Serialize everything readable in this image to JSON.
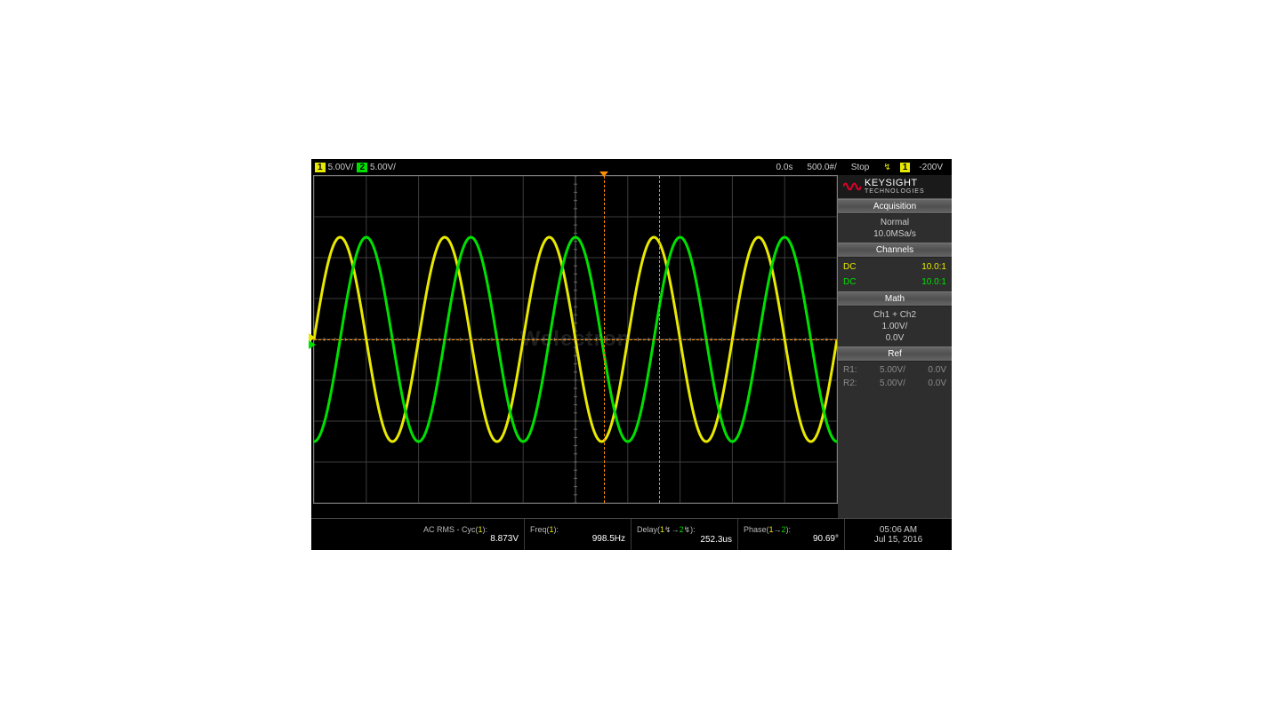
{
  "topbar": {
    "ch1_num": "1",
    "ch1_scale": "5.00V/",
    "ch2_num": "2",
    "ch2_scale": "5.00V/",
    "delay": "0.0s",
    "timebase": "500.0#/",
    "run_state": "Stop",
    "trig_edge_glyph": "↯",
    "trig_source": "1",
    "trig_level": "-200V"
  },
  "waveform": {
    "type": "line",
    "grid_cols": 10,
    "grid_rows": 8,
    "grid_color": "#3c3c3c",
    "center_line_color": "#6a6a6a",
    "background_color": "#000000",
    "cursor_color": "#ff8c00",
    "ground_row": 4,
    "trigger_cursor_col": 5.55,
    "cursor2_col": 6.6,
    "series": [
      {
        "name": "ch1",
        "color": "#e8e800",
        "line_width": 3,
        "amplitude_divs": 2.5,
        "cycles_on_screen": 5.0,
        "phase_deg": 0
      },
      {
        "name": "ch2",
        "color": "#00e000",
        "line_width": 3,
        "amplitude_divs": 2.5,
        "cycles_on_screen": 5.0,
        "phase_deg": -90
      }
    ],
    "watermark": "Welectron"
  },
  "brand": {
    "name": "KEYSIGHT",
    "sub": "TECHNOLOGIES",
    "logo_color": "#e0002a"
  },
  "side": {
    "acquisition_hdr": "Acquisition",
    "acq_mode": "Normal",
    "acq_rate": "10.0MSa/s",
    "channels_hdr": "Channels",
    "chan_rows": [
      {
        "coupling": "DC",
        "probe": "10.0:1",
        "color": "chan-y"
      },
      {
        "coupling": "DC",
        "probe": "10.0:1",
        "color": "chan-g"
      }
    ],
    "math_hdr": "Math",
    "math_expr": "Ch1 + Ch2",
    "math_scale": "1.00V/",
    "math_offset": "0.0V",
    "ref_hdr": "Ref",
    "ref_rows": [
      {
        "label": "R1:",
        "scale": "5.00V/",
        "offset": "0.0V"
      },
      {
        "label": "R2:",
        "scale": "5.00V/",
        "offset": "0.0V"
      }
    ]
  },
  "measurements": [
    {
      "label_pre": "AC RMS - Cyc(",
      "label_mid": "1",
      "label_post": "):",
      "value": "8.873V"
    },
    {
      "label_pre": "Freq(",
      "label_mid": "1",
      "label_post": "):",
      "value": "998.5Hz"
    },
    {
      "label_pre": "Delay(",
      "label_mid": "1↯→2↯",
      "label_post": "):",
      "value": "252.3us"
    },
    {
      "label_pre": "Phase(",
      "label_mid": "1→2",
      "label_post": "):",
      "value": "90.69°"
    }
  ],
  "datetime": {
    "time": "05:06 AM",
    "date": "Jul 15, 2016"
  }
}
